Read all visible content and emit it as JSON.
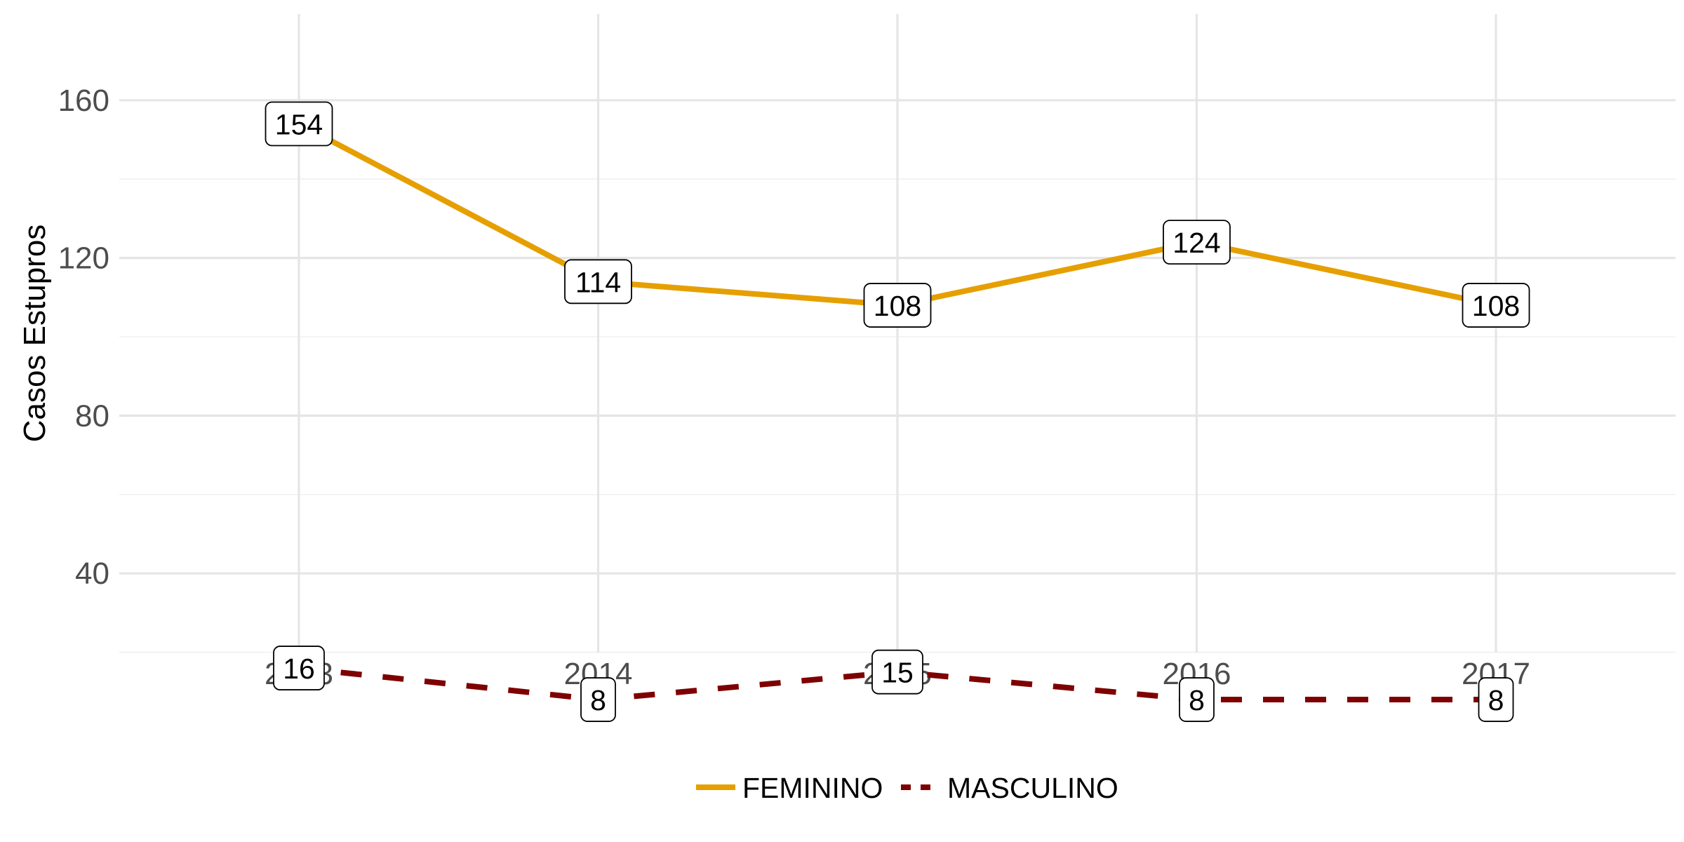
{
  "chart_data": {
    "type": "line",
    "title": "",
    "xlabel": "",
    "ylabel": "Casos Estupros",
    "x": [
      "2013",
      "2014",
      "2015",
      "2016",
      "2017"
    ],
    "ylim": [
      0,
      160
    ],
    "yticks": [
      "40",
      "80",
      "120",
      "160"
    ],
    "grid": true,
    "legend_position": "bottom",
    "series": [
      {
        "name": "FEMININO",
        "values": [
          154,
          114,
          108,
          124,
          108
        ],
        "labels": [
          "154",
          "114",
          "108",
          "124",
          "108"
        ],
        "color": "#E69F00",
        "line_style": "solid"
      },
      {
        "name": "MASCULINO",
        "values": [
          16,
          8,
          15,
          8,
          8
        ],
        "labels": [
          "16",
          "8",
          "15",
          "8",
          "8"
        ],
        "color": "#7F0000",
        "line_style": "dashed"
      }
    ]
  }
}
